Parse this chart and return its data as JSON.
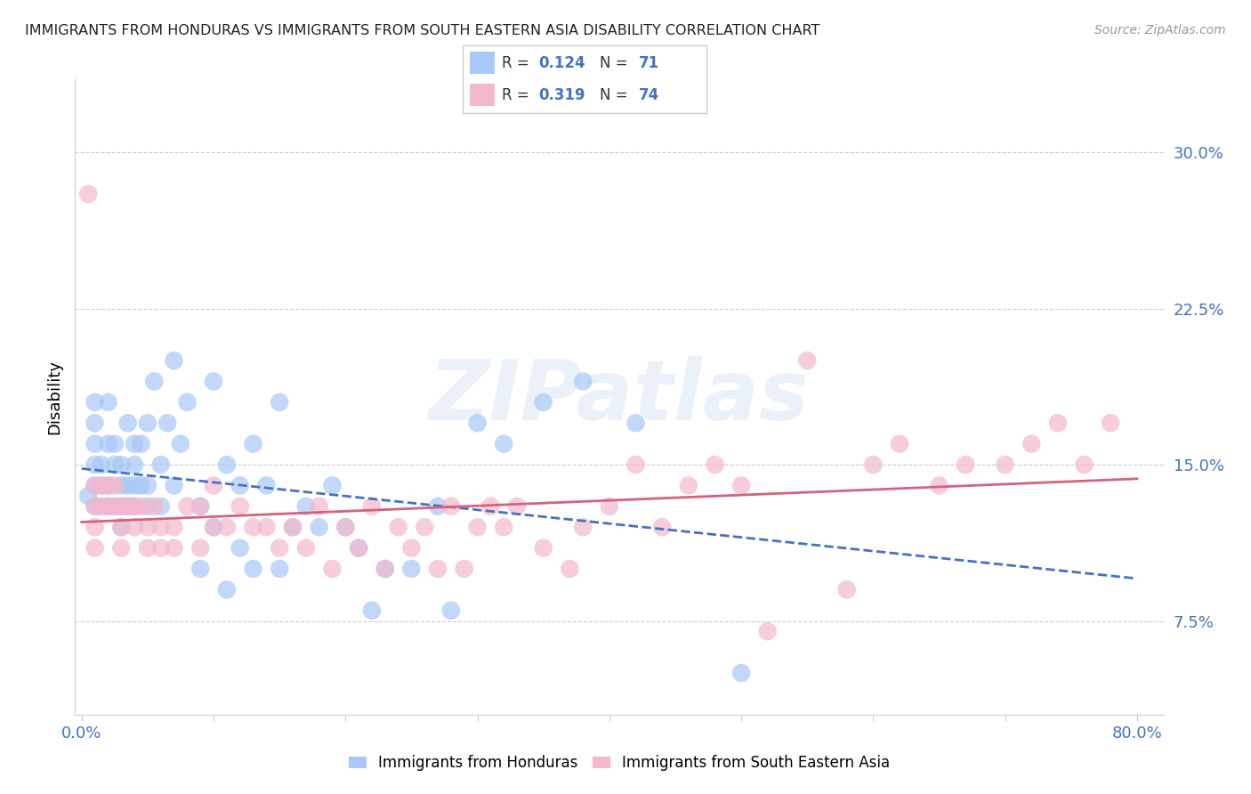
{
  "title": "IMMIGRANTS FROM HONDURAS VS IMMIGRANTS FROM SOUTH EASTERN ASIA DISABILITY CORRELATION CHART",
  "source": "Source: ZipAtlas.com",
  "ylabel": "Disability",
  "xlim": [
    0.0,
    0.8
  ],
  "ylim": [
    0.04,
    0.34
  ],
  "yticks": [
    0.075,
    0.15,
    0.225,
    0.3
  ],
  "ytick_labels": [
    "7.5%",
    "15.0%",
    "22.5%",
    "30.0%"
  ],
  "xtick_labels_left": "0.0%",
  "xtick_labels_right": "80.0%",
  "color_honduras": "#a8c8f8",
  "color_sea": "#f4b8cc",
  "color_line_honduras": "#4472c4",
  "color_line_sea": "#d4637a",
  "watermark": "ZIPatlas",
  "honduras_x": [
    0.005,
    0.01,
    0.01,
    0.01,
    0.01,
    0.01,
    0.01,
    0.015,
    0.015,
    0.015,
    0.02,
    0.02,
    0.02,
    0.02,
    0.025,
    0.025,
    0.025,
    0.03,
    0.03,
    0.03,
    0.03,
    0.035,
    0.035,
    0.035,
    0.04,
    0.04,
    0.04,
    0.04,
    0.045,
    0.045,
    0.05,
    0.05,
    0.05,
    0.055,
    0.06,
    0.06,
    0.065,
    0.07,
    0.07,
    0.075,
    0.08,
    0.09,
    0.09,
    0.1,
    0.1,
    0.11,
    0.11,
    0.12,
    0.12,
    0.13,
    0.13,
    0.14,
    0.15,
    0.15,
    0.16,
    0.17,
    0.18,
    0.19,
    0.2,
    0.21,
    0.22,
    0.23,
    0.25,
    0.27,
    0.28,
    0.3,
    0.32,
    0.35,
    0.38,
    0.42,
    0.5
  ],
  "honduras_y": [
    0.135,
    0.13,
    0.14,
    0.15,
    0.16,
    0.17,
    0.18,
    0.13,
    0.14,
    0.15,
    0.13,
    0.14,
    0.16,
    0.18,
    0.13,
    0.15,
    0.16,
    0.12,
    0.13,
    0.14,
    0.15,
    0.13,
    0.14,
    0.17,
    0.13,
    0.14,
    0.15,
    0.16,
    0.14,
    0.16,
    0.13,
    0.14,
    0.17,
    0.19,
    0.13,
    0.15,
    0.17,
    0.14,
    0.2,
    0.16,
    0.18,
    0.13,
    0.1,
    0.12,
    0.19,
    0.09,
    0.15,
    0.11,
    0.14,
    0.1,
    0.16,
    0.14,
    0.1,
    0.18,
    0.12,
    0.13,
    0.12,
    0.14,
    0.12,
    0.11,
    0.08,
    0.1,
    0.1,
    0.13,
    0.08,
    0.17,
    0.16,
    0.18,
    0.19,
    0.17,
    0.05
  ],
  "sea_x": [
    0.005,
    0.01,
    0.01,
    0.01,
    0.01,
    0.015,
    0.015,
    0.02,
    0.02,
    0.025,
    0.025,
    0.03,
    0.03,
    0.03,
    0.035,
    0.04,
    0.04,
    0.045,
    0.05,
    0.05,
    0.055,
    0.06,
    0.06,
    0.07,
    0.07,
    0.08,
    0.09,
    0.09,
    0.1,
    0.1,
    0.11,
    0.12,
    0.13,
    0.14,
    0.15,
    0.16,
    0.17,
    0.18,
    0.19,
    0.2,
    0.21,
    0.22,
    0.23,
    0.24,
    0.25,
    0.26,
    0.27,
    0.28,
    0.29,
    0.3,
    0.31,
    0.32,
    0.33,
    0.35,
    0.37,
    0.38,
    0.4,
    0.42,
    0.44,
    0.46,
    0.48,
    0.5,
    0.52,
    0.55,
    0.58,
    0.6,
    0.62,
    0.65,
    0.67,
    0.7,
    0.72,
    0.74,
    0.76,
    0.78
  ],
  "sea_y": [
    0.28,
    0.14,
    0.13,
    0.12,
    0.11,
    0.14,
    0.13,
    0.14,
    0.13,
    0.14,
    0.13,
    0.13,
    0.12,
    0.11,
    0.13,
    0.13,
    0.12,
    0.13,
    0.12,
    0.11,
    0.13,
    0.12,
    0.11,
    0.12,
    0.11,
    0.13,
    0.11,
    0.13,
    0.12,
    0.14,
    0.12,
    0.13,
    0.12,
    0.12,
    0.11,
    0.12,
    0.11,
    0.13,
    0.1,
    0.12,
    0.11,
    0.13,
    0.1,
    0.12,
    0.11,
    0.12,
    0.1,
    0.13,
    0.1,
    0.12,
    0.13,
    0.12,
    0.13,
    0.11,
    0.1,
    0.12,
    0.13,
    0.15,
    0.12,
    0.14,
    0.15,
    0.14,
    0.07,
    0.2,
    0.09,
    0.15,
    0.16,
    0.14,
    0.15,
    0.15,
    0.16,
    0.17,
    0.15,
    0.17
  ]
}
